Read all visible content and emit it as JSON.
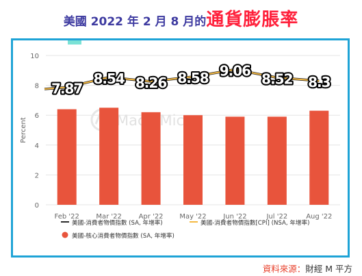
{
  "headline": {
    "lead": "美國 2022 年 2 月 8 月的",
    "accent": "通貨膨脹率"
  },
  "watermark": "MacroMicro",
  "source": {
    "label": "資料來源：",
    "value": "財經 M 平方"
  },
  "colors": {
    "bar": "#e8543c",
    "line": "#f5b942",
    "frame": "#1ea3d6",
    "title_lead": "#3d3aa0",
    "title_accent": "#ff1f3a"
  },
  "chart_data": {
    "type": "bar",
    "categories": [
      "Feb '22",
      "Mar '22",
      "Apr '22",
      "May '22",
      "Jun '22",
      "Jul '22",
      "Aug '22"
    ],
    "ylabel": "Percent",
    "ylim": [
      0,
      10
    ],
    "yticks": [
      0,
      2,
      4,
      6,
      8,
      10
    ],
    "grid": true,
    "series": [
      {
        "name": "美國-核心消費者物價指數 (SA, 年增率)",
        "kind": "bar",
        "values": [
          6.4,
          6.5,
          6.2,
          6.0,
          5.9,
          5.9,
          6.3
        ]
      },
      {
        "name": "美國-消費者物價指數[CPI] (NSA, 年增率)",
        "kind": "line",
        "values": [
          7.87,
          8.54,
          8.26,
          8.58,
          9.06,
          8.52,
          8.3
        ],
        "labels": [
          "7.87",
          "8.54",
          "8.26",
          "8.58",
          "9.06",
          "8.52",
          "8.3"
        ]
      }
    ],
    "legend": [
      {
        "marker": "line",
        "color": "#2b2b2b",
        "text": "美國-消費者物價指數 (SA, 年增率)"
      },
      {
        "marker": "line",
        "color": "#f5b942",
        "text": "美國-消費者物價指數[CPI] (NSA, 年增率)"
      },
      {
        "marker": "dot",
        "color": "#e8543c",
        "text": "美國-核心消費者物價指數 (SA, 年增率)"
      }
    ],
    "legend_position": "bottom"
  }
}
